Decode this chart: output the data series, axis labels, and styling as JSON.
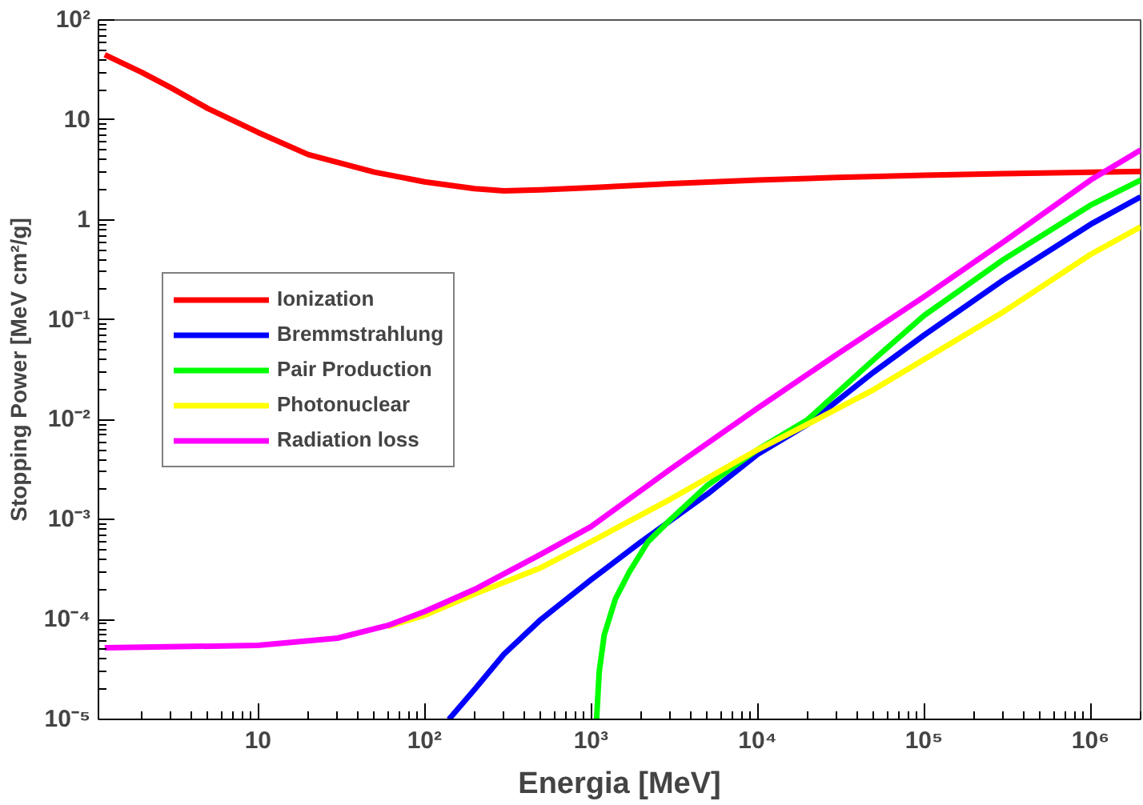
{
  "chart_data": {
    "type": "line",
    "xlabel": "Energia [MeV]",
    "ylabel": "Stopping Power [MeV cm²/g]",
    "log": "xy",
    "grid": false,
    "legend": "left",
    "line_style": "solid",
    "marker": "none",
    "xlim": [
      1.1,
      2000000
    ],
    "ylim": [
      1e-05,
      100
    ],
    "xticks": [
      10,
      {
        "value": 100,
        "label": "10²"
      },
      {
        "value": 1000,
        "label": "10³"
      },
      {
        "value": 10000,
        "label": "10⁴"
      },
      {
        "value": 100000,
        "label": "10⁵"
      },
      {
        "value": 1000000,
        "label": "10⁶"
      }
    ],
    "yticks": [
      {
        "value": 1e-05,
        "label": "10⁻⁵"
      },
      {
        "value": 0.0001,
        "label": "10⁻⁴"
      },
      {
        "value": 0.001,
        "label": "10⁻³"
      },
      {
        "value": 0.01,
        "label": "10⁻²"
      },
      {
        "value": 0.1,
        "label": "10⁻¹"
      },
      1,
      10,
      {
        "value": 100,
        "label": "10²"
      }
    ],
    "series": [
      {
        "name": "Ionization",
        "color": "#ff0000",
        "x": [
          1.2,
          2,
          3,
          5,
          10,
          20,
          50,
          100,
          200,
          300,
          500,
          1000,
          3000,
          10000,
          30000,
          100000,
          300000,
          1000000,
          2000000
        ],
        "values": [
          45,
          30,
          21,
          13,
          7.5,
          4.5,
          3,
          2.4,
          2.05,
          1.95,
          2.0,
          2.1,
          2.3,
          2.5,
          2.65,
          2.8,
          2.9,
          3.0,
          3.05
        ]
      },
      {
        "name": "Bremmstrahlung",
        "color": "#0000ff",
        "x": [
          140,
          200,
          300,
          500,
          1000,
          2000,
          5000,
          10000,
          20000,
          50000,
          100000,
          300000,
          1000000,
          2000000
        ],
        "values": [
          1e-05,
          2e-05,
          4.5e-05,
          0.0001,
          0.00025,
          0.0006,
          0.0018,
          0.0045,
          0.009,
          0.03,
          0.07,
          0.25,
          0.9,
          1.7
        ]
      },
      {
        "name": "Pair Production",
        "color": "#00ff00",
        "x": [
          1080,
          1120,
          1200,
          1400,
          1700,
          2200,
          3000,
          5000,
          10000,
          20000,
          50000,
          100000,
          300000,
          1000000,
          2000000
        ],
        "values": [
          1e-05,
          3e-05,
          7e-05,
          0.00016,
          0.0003,
          0.0006,
          0.001,
          0.0022,
          0.005,
          0.01,
          0.04,
          0.11,
          0.4,
          1.4,
          2.5
        ]
      },
      {
        "name": "Photonuclear",
        "color": "#ffff00",
        "x": [
          60,
          100,
          200,
          500,
          1000,
          3000,
          10000,
          20000,
          50000,
          100000,
          300000,
          1000000,
          2000000
        ],
        "values": [
          8.5e-05,
          0.00011,
          0.00018,
          0.00033,
          0.0006,
          0.0016,
          0.005,
          0.009,
          0.02,
          0.04,
          0.12,
          0.45,
          0.85
        ]
      },
      {
        "name": "Radiation loss",
        "color": "#ff00ff",
        "x": [
          1.2,
          10,
          30,
          60,
          100,
          200,
          500,
          1000,
          3000,
          10000,
          30000,
          100000,
          300000,
          1000000,
          2000000
        ],
        "values": [
          5.2e-05,
          5.5e-05,
          6.5e-05,
          8.7e-05,
          0.00012,
          0.0002,
          0.00045,
          0.00085,
          0.0032,
          0.013,
          0.045,
          0.17,
          0.6,
          2.5,
          5
        ]
      }
    ]
  }
}
